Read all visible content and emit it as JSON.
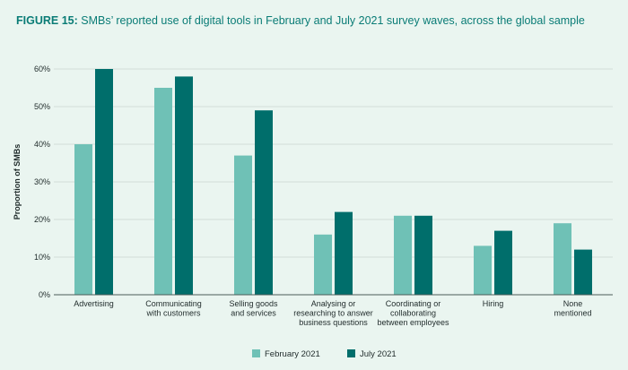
{
  "figure": {
    "label": "FIGURE 15:",
    "title_text": " SMBs’ reported use of digital tools in February and July 2021 survey waves, across the global sample"
  },
  "colors": {
    "background": "#eaf5f0",
    "title": "#0a7c76",
    "grid": "#d3ddd8",
    "axis": "#4a5a58"
  },
  "chart_data": {
    "type": "bar",
    "title": "SMBs’ reported use of digital tools in February and July 2021 survey waves, across the global sample",
    "xlabel": "",
    "ylabel": "Proportion of SMBs",
    "ylim": [
      0,
      0.6
    ],
    "yticks": [
      0,
      0.1,
      0.2,
      0.3,
      0.4,
      0.5,
      0.6
    ],
    "ytick_labels": [
      "0%",
      "10%",
      "20%",
      "30%",
      "40%",
      "50%",
      "60%"
    ],
    "grid": true,
    "legend": "bottom-center",
    "categories": [
      [
        "Advertising"
      ],
      [
        "Communicating",
        "with customers"
      ],
      [
        "Selling goods",
        "and services"
      ],
      [
        "Analysing or",
        "researching to answer",
        "business questions"
      ],
      [
        "Coordinating or",
        "collaborating",
        "between employees"
      ],
      [
        "Hiring"
      ],
      [
        "None",
        "mentioned"
      ]
    ],
    "series": [
      {
        "name": "February 2021",
        "color": "#6fc1b6",
        "values": [
          0.4,
          0.55,
          0.37,
          0.16,
          0.21,
          0.13,
          0.19
        ]
      },
      {
        "name": "July 2021",
        "color": "#006e6b",
        "values": [
          0.6,
          0.58,
          0.49,
          0.22,
          0.21,
          0.17,
          0.12
        ]
      }
    ]
  }
}
